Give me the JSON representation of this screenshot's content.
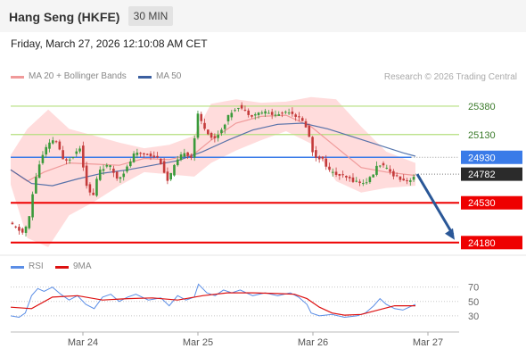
{
  "header": {
    "title": "Hang Seng (HKFE)",
    "timeframe": "30 MIN"
  },
  "timestamp": "Friday, March 27, 2026 12:10:08 AM CET",
  "legend": {
    "ma20": "MA 20 + Bollinger Bands",
    "ma50": "MA 50",
    "credit": "Research © 2026 Trading Central"
  },
  "rsi_legend": {
    "rsi": "RSI",
    "ma": "9MA"
  },
  "colors": {
    "resistance": "#b5df7e",
    "pivot": "#3a7be8",
    "support": "#ee0000",
    "last": "#2b2b2b",
    "arrow": "#2a5797",
    "ma20": "#f09a9a",
    "bands": "#ffd6d6",
    "ma50": "#3b5fa0",
    "up": "#3a9a3a",
    "down": "#c43b3b",
    "rsi_line": "#5b8ee6",
    "rsi_ma": "#dd1111"
  },
  "chart_data": [
    {
      "type": "candlestick",
      "title": "Hang Seng (HKFE) 30 MIN",
      "x_labels": [
        "Mar 24",
        "Mar 25",
        "Mar 26",
        "Mar 27"
      ],
      "y_range": [
        24100,
        25560
      ],
      "levels": [
        {
          "role": "resistance",
          "value": 25380,
          "label": "25380"
        },
        {
          "role": "resistance",
          "value": 25130,
          "label": "25130"
        },
        {
          "role": "pivot",
          "value": 24930,
          "label": "24930"
        },
        {
          "role": "last",
          "value": 24782,
          "label": "24782"
        },
        {
          "role": "support",
          "value": 24530,
          "label": "24530"
        },
        {
          "role": "support",
          "value": 24180,
          "label": "24180"
        }
      ],
      "arrow": {
        "from": 24782,
        "to": 24180,
        "direction": "down"
      },
      "price_path": [
        {
          "x": 0.0,
          "y": 24350
        },
        {
          "x": 0.02,
          "y": 24300
        },
        {
          "x": 0.035,
          "y": 24260
        },
        {
          "x": 0.05,
          "y": 24420
        },
        {
          "x": 0.06,
          "y": 24700
        },
        {
          "x": 0.075,
          "y": 24900
        },
        {
          "x": 0.09,
          "y": 25020
        },
        {
          "x": 0.11,
          "y": 25100
        },
        {
          "x": 0.13,
          "y": 24900
        },
        {
          "x": 0.15,
          "y": 24930
        },
        {
          "x": 0.17,
          "y": 25020
        },
        {
          "x": 0.185,
          "y": 24700
        },
        {
          "x": 0.2,
          "y": 24560
        },
        {
          "x": 0.215,
          "y": 24820
        },
        {
          "x": 0.24,
          "y": 24860
        },
        {
          "x": 0.26,
          "y": 24740
        },
        {
          "x": 0.28,
          "y": 24820
        },
        {
          "x": 0.3,
          "y": 24960
        },
        {
          "x": 0.33,
          "y": 24960
        },
        {
          "x": 0.36,
          "y": 24920
        },
        {
          "x": 0.38,
          "y": 24720
        },
        {
          "x": 0.4,
          "y": 24880
        },
        {
          "x": 0.42,
          "y": 24980
        },
        {
          "x": 0.44,
          "y": 24920
        },
        {
          "x": 0.45,
          "y": 25320
        },
        {
          "x": 0.47,
          "y": 25180
        },
        {
          "x": 0.49,
          "y": 25080
        },
        {
          "x": 0.51,
          "y": 25180
        },
        {
          "x": 0.53,
          "y": 25320
        },
        {
          "x": 0.55,
          "y": 25380
        },
        {
          "x": 0.58,
          "y": 25300
        },
        {
          "x": 0.61,
          "y": 25330
        },
        {
          "x": 0.64,
          "y": 25300
        },
        {
          "x": 0.67,
          "y": 25340
        },
        {
          "x": 0.69,
          "y": 25290
        },
        {
          "x": 0.71,
          "y": 25220
        },
        {
          "x": 0.72,
          "y": 25100
        },
        {
          "x": 0.73,
          "y": 24940
        },
        {
          "x": 0.75,
          "y": 24920
        },
        {
          "x": 0.77,
          "y": 24800
        },
        {
          "x": 0.8,
          "y": 24760
        },
        {
          "x": 0.83,
          "y": 24720
        },
        {
          "x": 0.85,
          "y": 24700
        },
        {
          "x": 0.87,
          "y": 24760
        },
        {
          "x": 0.885,
          "y": 24880
        },
        {
          "x": 0.9,
          "y": 24840
        },
        {
          "x": 0.92,
          "y": 24780
        },
        {
          "x": 0.94,
          "y": 24740
        },
        {
          "x": 0.955,
          "y": 24720
        },
        {
          "x": 0.97,
          "y": 24760
        }
      ],
      "ma20_path": [
        {
          "x": 0.0,
          "y": 24820
        },
        {
          "x": 0.04,
          "y": 24720
        },
        {
          "x": 0.08,
          "y": 24800
        },
        {
          "x": 0.14,
          "y": 24880
        },
        {
          "x": 0.2,
          "y": 24870
        },
        {
          "x": 0.26,
          "y": 24860
        },
        {
          "x": 0.32,
          "y": 24920
        },
        {
          "x": 0.38,
          "y": 24910
        },
        {
          "x": 0.44,
          "y": 24960
        },
        {
          "x": 0.48,
          "y": 25080
        },
        {
          "x": 0.54,
          "y": 25230
        },
        {
          "x": 0.6,
          "y": 25290
        },
        {
          "x": 0.66,
          "y": 25300
        },
        {
          "x": 0.72,
          "y": 25200
        },
        {
          "x": 0.78,
          "y": 25020
        },
        {
          "x": 0.84,
          "y": 24840
        },
        {
          "x": 0.9,
          "y": 24800
        },
        {
          "x": 0.97,
          "y": 24770
        }
      ],
      "ma50_path": [
        {
          "x": 0.0,
          "y": 24820
        },
        {
          "x": 0.05,
          "y": 24700
        },
        {
          "x": 0.1,
          "y": 24680
        },
        {
          "x": 0.16,
          "y": 24740
        },
        {
          "x": 0.22,
          "y": 24790
        },
        {
          "x": 0.28,
          "y": 24820
        },
        {
          "x": 0.34,
          "y": 24860
        },
        {
          "x": 0.4,
          "y": 24900
        },
        {
          "x": 0.46,
          "y": 24980
        },
        {
          "x": 0.52,
          "y": 25080
        },
        {
          "x": 0.58,
          "y": 25170
        },
        {
          "x": 0.64,
          "y": 25220
        },
        {
          "x": 0.7,
          "y": 25230
        },
        {
          "x": 0.76,
          "y": 25180
        },
        {
          "x": 0.82,
          "y": 25110
        },
        {
          "x": 0.88,
          "y": 25040
        },
        {
          "x": 0.94,
          "y": 24970
        },
        {
          "x": 0.97,
          "y": 24940
        }
      ],
      "band_upper": [
        {
          "x": 0.0,
          "y": 24950
        },
        {
          "x": 0.04,
          "y": 25180
        },
        {
          "x": 0.09,
          "y": 25350
        },
        {
          "x": 0.14,
          "y": 25180
        },
        {
          "x": 0.2,
          "y": 25120
        },
        {
          "x": 0.26,
          "y": 25060
        },
        {
          "x": 0.32,
          "y": 25010
        },
        {
          "x": 0.38,
          "y": 25040
        },
        {
          "x": 0.44,
          "y": 25120
        },
        {
          "x": 0.48,
          "y": 25400
        },
        {
          "x": 0.54,
          "y": 25440
        },
        {
          "x": 0.6,
          "y": 25410
        },
        {
          "x": 0.66,
          "y": 25420
        },
        {
          "x": 0.72,
          "y": 25460
        },
        {
          "x": 0.78,
          "y": 25440
        },
        {
          "x": 0.84,
          "y": 25200
        },
        {
          "x": 0.9,
          "y": 24980
        },
        {
          "x": 0.97,
          "y": 24880
        }
      ],
      "band_lower": [
        {
          "x": 0.0,
          "y": 24690
        },
        {
          "x": 0.04,
          "y": 24220
        },
        {
          "x": 0.09,
          "y": 24140
        },
        {
          "x": 0.14,
          "y": 24420
        },
        {
          "x": 0.2,
          "y": 24540
        },
        {
          "x": 0.26,
          "y": 24680
        },
        {
          "x": 0.32,
          "y": 24800
        },
        {
          "x": 0.38,
          "y": 24780
        },
        {
          "x": 0.44,
          "y": 24760
        },
        {
          "x": 0.48,
          "y": 24880
        },
        {
          "x": 0.54,
          "y": 24990
        },
        {
          "x": 0.6,
          "y": 25080
        },
        {
          "x": 0.66,
          "y": 25160
        },
        {
          "x": 0.72,
          "y": 25050
        },
        {
          "x": 0.78,
          "y": 24720
        },
        {
          "x": 0.84,
          "y": 24620
        },
        {
          "x": 0.9,
          "y": 24660
        },
        {
          "x": 0.97,
          "y": 24680
        }
      ]
    },
    {
      "type": "line",
      "title": "RSI",
      "series": [
        {
          "name": "RSI"
        },
        {
          "name": "9MA"
        }
      ],
      "y_range": [
        10,
        82
      ],
      "y_ticks": [
        "70",
        "50",
        "30"
      ],
      "rsi_path": [
        {
          "x": 0.0,
          "y": 30
        },
        {
          "x": 0.02,
          "y": 28
        },
        {
          "x": 0.035,
          "y": 34
        },
        {
          "x": 0.05,
          "y": 58
        },
        {
          "x": 0.065,
          "y": 68
        },
        {
          "x": 0.08,
          "y": 64
        },
        {
          "x": 0.1,
          "y": 70
        },
        {
          "x": 0.12,
          "y": 60
        },
        {
          "x": 0.14,
          "y": 52
        },
        {
          "x": 0.16,
          "y": 58
        },
        {
          "x": 0.18,
          "y": 46
        },
        {
          "x": 0.2,
          "y": 40
        },
        {
          "x": 0.22,
          "y": 56
        },
        {
          "x": 0.24,
          "y": 60
        },
        {
          "x": 0.26,
          "y": 50
        },
        {
          "x": 0.28,
          "y": 56
        },
        {
          "x": 0.3,
          "y": 60
        },
        {
          "x": 0.33,
          "y": 52
        },
        {
          "x": 0.36,
          "y": 55
        },
        {
          "x": 0.38,
          "y": 44
        },
        {
          "x": 0.4,
          "y": 58
        },
        {
          "x": 0.42,
          "y": 52
        },
        {
          "x": 0.44,
          "y": 56
        },
        {
          "x": 0.45,
          "y": 74
        },
        {
          "x": 0.47,
          "y": 62
        },
        {
          "x": 0.49,
          "y": 58
        },
        {
          "x": 0.51,
          "y": 66
        },
        {
          "x": 0.53,
          "y": 62
        },
        {
          "x": 0.55,
          "y": 66
        },
        {
          "x": 0.58,
          "y": 58
        },
        {
          "x": 0.61,
          "y": 62
        },
        {
          "x": 0.64,
          "y": 58
        },
        {
          "x": 0.67,
          "y": 62
        },
        {
          "x": 0.69,
          "y": 56
        },
        {
          "x": 0.71,
          "y": 46
        },
        {
          "x": 0.72,
          "y": 34
        },
        {
          "x": 0.74,
          "y": 30
        },
        {
          "x": 0.77,
          "y": 32
        },
        {
          "x": 0.8,
          "y": 28
        },
        {
          "x": 0.83,
          "y": 30
        },
        {
          "x": 0.85,
          "y": 34
        },
        {
          "x": 0.87,
          "y": 44
        },
        {
          "x": 0.885,
          "y": 54
        },
        {
          "x": 0.9,
          "y": 46
        },
        {
          "x": 0.92,
          "y": 40
        },
        {
          "x": 0.94,
          "y": 38
        },
        {
          "x": 0.955,
          "y": 42
        },
        {
          "x": 0.97,
          "y": 46
        }
      ],
      "ma_path": [
        {
          "x": 0.0,
          "y": 42
        },
        {
          "x": 0.05,
          "y": 40
        },
        {
          "x": 0.1,
          "y": 56
        },
        {
          "x": 0.16,
          "y": 58
        },
        {
          "x": 0.22,
          "y": 52
        },
        {
          "x": 0.28,
          "y": 54
        },
        {
          "x": 0.34,
          "y": 55
        },
        {
          "x": 0.4,
          "y": 52
        },
        {
          "x": 0.46,
          "y": 58
        },
        {
          "x": 0.52,
          "y": 62
        },
        {
          "x": 0.58,
          "y": 62
        },
        {
          "x": 0.64,
          "y": 61
        },
        {
          "x": 0.68,
          "y": 60
        },
        {
          "x": 0.71,
          "y": 54
        },
        {
          "x": 0.74,
          "y": 42
        },
        {
          "x": 0.77,
          "y": 34
        },
        {
          "x": 0.8,
          "y": 31
        },
        {
          "x": 0.84,
          "y": 32
        },
        {
          "x": 0.88,
          "y": 38
        },
        {
          "x": 0.92,
          "y": 44
        },
        {
          "x": 0.97,
          "y": 44
        }
      ]
    }
  ]
}
